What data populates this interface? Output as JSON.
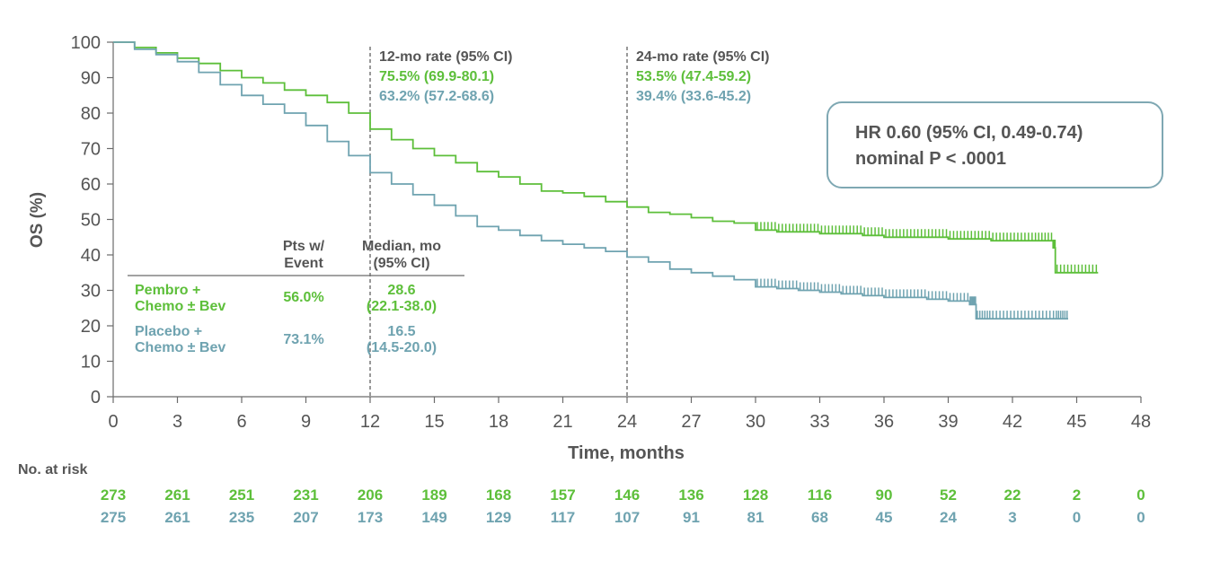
{
  "colors": {
    "pembro": "#5dbf3a",
    "placebo": "#6fa3b0",
    "axis": "#6b6b6b",
    "text": "#555555",
    "box_border": "#7fa8b3"
  },
  "chart_data": {
    "type": "line",
    "xlabel": "Time, months",
    "ylabel": "OS (%)",
    "xlim": [
      0,
      48
    ],
    "ylim": [
      0,
      100
    ],
    "x_ticks": [
      0,
      3,
      6,
      9,
      12,
      15,
      18,
      21,
      24,
      27,
      30,
      33,
      36,
      39,
      42,
      45,
      48
    ],
    "y_ticks": [
      0,
      10,
      20,
      30,
      40,
      50,
      60,
      70,
      80,
      90,
      100
    ],
    "grid": false,
    "series": [
      {
        "name": "Pembro + Chemo ± Bev",
        "color": "#5dbf3a",
        "x": [
          0,
          1,
          2,
          3,
          4,
          5,
          6,
          7,
          8,
          9,
          10,
          11,
          12,
          13,
          14,
          15,
          16,
          17,
          18,
          19,
          20,
          21,
          22,
          23,
          24,
          25,
          26,
          27,
          28,
          29,
          30,
          31,
          32,
          33,
          34,
          35,
          36,
          37,
          38,
          39,
          40,
          41,
          42,
          43,
          43.9,
          44,
          45,
          46
        ],
        "y": [
          100,
          98.5,
          97,
          95.5,
          94,
          92,
          90,
          88.5,
          86.5,
          85,
          83,
          80,
          75.5,
          72.5,
          70,
          68,
          66,
          63.5,
          62,
          60,
          58,
          57.5,
          56.5,
          55,
          53.5,
          52,
          51.5,
          50.5,
          49.5,
          49,
          47,
          46.5,
          46.5,
          46,
          46,
          45.5,
          45,
          45,
          45,
          44.5,
          44.5,
          44,
          44,
          44,
          42,
          35,
          35,
          35
        ]
      },
      {
        "name": "Placebo + Chemo ± Bev",
        "color": "#6fa3b0",
        "x": [
          0,
          1,
          2,
          3,
          4,
          5,
          6,
          7,
          8,
          9,
          10,
          11,
          12,
          13,
          14,
          15,
          16,
          17,
          18,
          19,
          20,
          21,
          22,
          23,
          24,
          25,
          26,
          27,
          28,
          29,
          30,
          31,
          32,
          33,
          34,
          35,
          36,
          37,
          38,
          39,
          40,
          40.3,
          41,
          42,
          43,
          44,
          44.6
        ],
        "y": [
          100,
          98,
          96.5,
          94.5,
          91.5,
          88,
          85,
          82.5,
          80,
          76.5,
          72,
          68,
          63.2,
          60,
          57,
          54,
          51,
          48,
          47,
          45.5,
          44,
          43,
          42,
          41,
          39.4,
          38,
          36,
          35,
          34,
          33,
          31,
          30.5,
          30,
          29.5,
          29,
          28.5,
          28,
          28,
          27.5,
          27,
          26,
          22,
          22,
          22,
          22,
          22,
          22
        ]
      }
    ],
    "annotations": [
      {
        "x": 12,
        "title": "12-mo rate (95% CI)",
        "pembro": "75.5% (69.9-80.1)",
        "placebo": "63.2% (57.2-68.6)"
      },
      {
        "x": 24,
        "title": "24-mo rate (95% CI)",
        "pembro": "53.5% (47.4-59.2)",
        "placebo": "39.4% (33.6-45.2)"
      }
    ]
  },
  "hr_box": {
    "line1": "HR 0.60 (95% CI, 0.49-0.74)",
    "line2": "nominal P < .0001"
  },
  "table": {
    "col1_header_l1": "Pts w/",
    "col1_header_l2": "Event",
    "col2_header_l1": "Median, mo",
    "col2_header_l2": "(95% CI)",
    "rows": [
      {
        "label_l1": "Pembro +",
        "label_l2": "Chemo ± Bev",
        "events": "56.0%",
        "median_l1": "28.6",
        "median_l2": "(22.1-38.0)"
      },
      {
        "label_l1": "Placebo +",
        "label_l2": "Chemo ± Bev",
        "events": "73.1%",
        "median_l1": "16.5",
        "median_l2": "(14.5-20.0)"
      }
    ]
  },
  "risk_table": {
    "title": "No. at risk",
    "pembro": [
      "273",
      "261",
      "251",
      "231",
      "206",
      "189",
      "168",
      "157",
      "146",
      "136",
      "128",
      "116",
      "90",
      "52",
      "22",
      "2",
      "0"
    ],
    "placebo": [
      "275",
      "261",
      "235",
      "207",
      "173",
      "149",
      "129",
      "117",
      "107",
      "91",
      "81",
      "68",
      "45",
      "24",
      "3",
      "0",
      "0"
    ]
  }
}
